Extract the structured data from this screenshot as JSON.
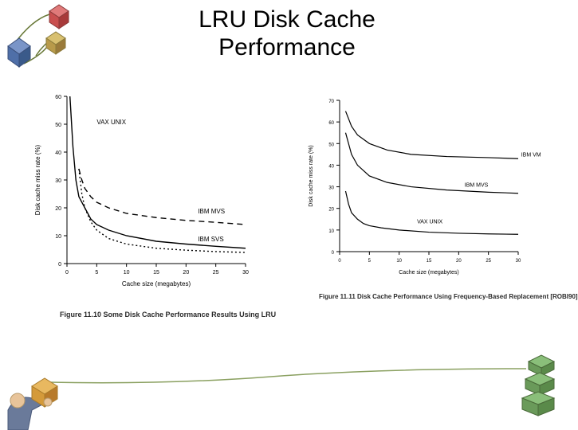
{
  "title_line1": "LRU Disk Cache",
  "title_line2": "Performance",
  "left_chart": {
    "type": "line",
    "xlabel": "Cache size (megabytes)",
    "ylabel": "Disk cache miss rate (%)",
    "xlim": [
      0,
      30
    ],
    "ylim": [
      0,
      60
    ],
    "xtick_step": 5,
    "ytick_step": 10,
    "label_fontsize": 8,
    "tick_fontsize": 7,
    "background_color": "#ffffff",
    "axis_color": "#000000",
    "line_width": 1.4,
    "series": [
      {
        "name": "VAX UNIX",
        "style": "solid",
        "color": "#000000",
        "label_xy": [
          5,
          50
        ],
        "points": [
          [
            0.5,
            60
          ],
          [
            1,
            42
          ],
          [
            1.5,
            30
          ],
          [
            2,
            24
          ],
          [
            3,
            20
          ],
          [
            4,
            16
          ],
          [
            5,
            14
          ],
          [
            7,
            12
          ],
          [
            10,
            10
          ],
          [
            15,
            8
          ],
          [
            20,
            7
          ],
          [
            25,
            6.2
          ],
          [
            30,
            5.5
          ]
        ]
      },
      {
        "name": "IBM MVS",
        "style": "dashed",
        "color": "#000000",
        "label_xy": [
          22,
          18
        ],
        "points": [
          [
            2,
            34
          ],
          [
            2.5,
            30
          ],
          [
            3,
            27
          ],
          [
            4,
            24
          ],
          [
            5,
            22
          ],
          [
            7,
            20
          ],
          [
            10,
            18
          ],
          [
            15,
            16.5
          ],
          [
            20,
            15.5
          ],
          [
            25,
            14.8
          ],
          [
            30,
            14
          ]
        ]
      },
      {
        "name": "IBM SVS",
        "style": "dotted",
        "color": "#000000",
        "label_xy": [
          22,
          8
        ],
        "points": [
          [
            2,
            34
          ],
          [
            2.5,
            25
          ],
          [
            3,
            20
          ],
          [
            4,
            15
          ],
          [
            5,
            12
          ],
          [
            7,
            9
          ],
          [
            10,
            7
          ],
          [
            15,
            5.5
          ],
          [
            20,
            4.8
          ],
          [
            25,
            4.3
          ],
          [
            30,
            4
          ]
        ]
      }
    ],
    "caption": "Figure 11.10  Some Disk Cache Performance Results Using LRU"
  },
  "right_chart": {
    "type": "line",
    "xlabel": "Cache size (megabytes)",
    "ylabel": "Disk cache miss rate (%)",
    "xlim": [
      0,
      30
    ],
    "ylim": [
      0,
      70
    ],
    "xtick_step": 5,
    "ytick_step": 10,
    "label_fontsize": 7,
    "tick_fontsize": 6,
    "background_color": "#ffffff",
    "axis_color": "#000000",
    "line_width": 1.2,
    "series": [
      {
        "name": "IBM VM",
        "style": "solid",
        "color": "#000000",
        "label_xy": [
          30.5,
          44
        ],
        "points": [
          [
            1,
            65
          ],
          [
            2,
            58
          ],
          [
            3,
            54
          ],
          [
            5,
            50
          ],
          [
            8,
            47
          ],
          [
            12,
            45
          ],
          [
            18,
            44
          ],
          [
            25,
            43.5
          ],
          [
            30,
            43
          ]
        ]
      },
      {
        "name": "IBM MVS",
        "style": "solid",
        "color": "#000000",
        "label_xy": [
          21,
          30
        ],
        "points": [
          [
            1,
            55
          ],
          [
            2,
            45
          ],
          [
            3,
            40
          ],
          [
            5,
            35
          ],
          [
            8,
            32
          ],
          [
            12,
            30
          ],
          [
            18,
            28.5
          ],
          [
            25,
            27.5
          ],
          [
            30,
            27
          ]
        ]
      },
      {
        "name": "VAX UNIX",
        "style": "solid",
        "color": "#000000",
        "label_xy": [
          13,
          13
        ],
        "points": [
          [
            1,
            28
          ],
          [
            1.5,
            22
          ],
          [
            2,
            18
          ],
          [
            3,
            15
          ],
          [
            4,
            13
          ],
          [
            5,
            12
          ],
          [
            7,
            11
          ],
          [
            10,
            10
          ],
          [
            15,
            9
          ],
          [
            20,
            8.5
          ],
          [
            25,
            8.2
          ],
          [
            30,
            8
          ]
        ]
      }
    ],
    "caption": "Figure 11.11  Disk Cache Performance Using Frequency-Based Replacement [ROBI90]"
  },
  "decorations": {
    "top_cubes_colors": {
      "outline": "#6a7a3a",
      "cube1": "#c94f4f",
      "cube2": "#4f6fa8",
      "cube3": "#b89a4a"
    },
    "bottom_left_colors": {
      "skin": "#e8c49a",
      "shirt": "#6a7a9a",
      "box": "#d49a3a"
    },
    "bottom_right_colors": {
      "green1": "#6a9a5a",
      "green2": "#8abf7a",
      "green3": "#5a8a4a"
    },
    "swoosh_color": "#8aa060"
  }
}
